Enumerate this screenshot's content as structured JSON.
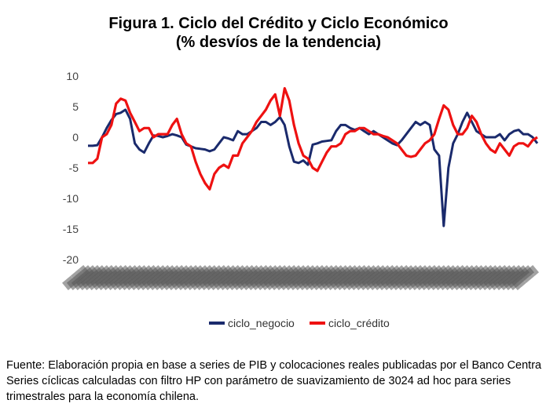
{
  "chart_data": {
    "type": "line",
    "title_line1": "Figura 1. Ciclo del Crédito y Ciclo Económico",
    "title_line2": "(% desvíos de la tendencia)",
    "xlabel": "",
    "ylabel": "",
    "ylim": [
      -20,
      10
    ],
    "yticks": [
      10,
      5,
      0,
      -5,
      -10,
      -15,
      -20
    ],
    "grid": false,
    "legend_position": "bottom",
    "x_tick_labels": "quarterly dates, densely overlapping and illegible",
    "series": [
      {
        "name": "ciclo_negocio",
        "color": "#1a2a6c",
        "values": [
          -1.4,
          -1.4,
          -1.3,
          0.0,
          1.5,
          2.8,
          3.8,
          4.0,
          4.5,
          3.0,
          -1.0,
          -2.0,
          -2.5,
          -1.0,
          0.3,
          0.2,
          0.0,
          0.2,
          0.5,
          0.3,
          0.0,
          -1.2,
          -1.5,
          -1.8,
          -1.9,
          -2.0,
          -2.3,
          -2.0,
          -1.0,
          0.0,
          -0.2,
          -0.5,
          1.0,
          0.5,
          0.5,
          1.0,
          1.5,
          2.5,
          2.5,
          2.0,
          2.5,
          3.3,
          2.0,
          -1.5,
          -4.0,
          -4.2,
          -3.8,
          -4.5,
          -1.2,
          -1.0,
          -0.7,
          -0.6,
          -0.5,
          1.0,
          2.0,
          2.0,
          1.5,
          1.2,
          1.5,
          1.0,
          0.5,
          1.0,
          0.5,
          0.0,
          -0.5,
          -1.0,
          -1.3,
          -0.5,
          0.5,
          1.5,
          2.5,
          2.0,
          2.5,
          2.0,
          -2.0,
          -3.0,
          -14.5,
          -5.0,
          -1.0,
          0.5,
          2.5,
          4.0,
          2.5,
          1.0,
          0.5,
          0.0,
          0.0,
          0.0,
          0.5,
          -0.5,
          0.5,
          1.0,
          1.2,
          0.5,
          0.5,
          0.0,
          -1.0
        ]
      },
      {
        "name": "ciclo_crédito",
        "color": "#ee1111",
        "values": [
          -4.2,
          -4.2,
          -3.5,
          0.0,
          0.5,
          2.0,
          5.5,
          6.3,
          6.0,
          4.0,
          2.5,
          1.0,
          1.5,
          1.5,
          0.0,
          0.5,
          0.5,
          0.5,
          2.0,
          3.0,
          0.5,
          -1.0,
          -1.5,
          -4.0,
          -6.0,
          -7.5,
          -8.5,
          -6.0,
          -5.0,
          -4.5,
          -5.0,
          -3.0,
          -3.0,
          -1.0,
          0.0,
          1.0,
          2.5,
          3.5,
          4.5,
          6.0,
          7.0,
          3.5,
          8.0,
          6.0,
          2.0,
          -1.0,
          -3.0,
          -3.5,
          -5.0,
          -5.5,
          -4.0,
          -2.5,
          -1.5,
          -1.5,
          -1.0,
          0.5,
          1.0,
          1.0,
          1.5,
          1.5,
          1.0,
          0.5,
          0.5,
          0.2,
          0.0,
          -0.5,
          -1.0,
          -2.0,
          -3.0,
          -3.2,
          -3.0,
          -2.0,
          -1.0,
          -0.5,
          0.5,
          3.0,
          5.2,
          4.5,
          2.0,
          0.5,
          0.5,
          1.5,
          3.5,
          2.5,
          0.5,
          -1.0,
          -2.0,
          -2.5,
          -1.0,
          -2.0,
          -3.0,
          -1.5,
          -1.0,
          -1.0,
          -1.5,
          -0.5,
          0.0
        ]
      }
    ]
  },
  "source": {
    "line1": "Fuente: Elaboración propia en base a series de PIB y colocaciones reales publicadas por el Banco Centra",
    "line2": "Series cíclicas calculadas con filtro HP con parámetro de suavizamiento de 3024 ad hoc para series",
    "line3": "trimestrales para la economía chilena."
  }
}
